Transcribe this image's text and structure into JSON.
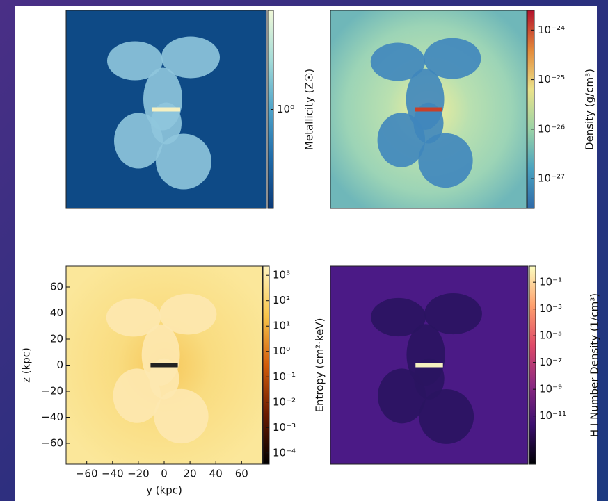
{
  "chart_data": [
    {
      "type": "heatmap",
      "colormap": "YlGnBu",
      "log_scale": true,
      "colorbar_label": "Metallicity (Z☉)",
      "clim": [
        0.1,
        10
      ],
      "cticks": [
        {
          "value": 1,
          "label": "10⁰"
        }
      ]
    },
    {
      "type": "heatmap",
      "colormap": "viridis-red",
      "log_scale": true,
      "colorbar_label": "Density (g/cm³)",
      "clim": [
        2.5e-28,
        2.5e-24
      ],
      "cticks": [
        {
          "value": 1e-24,
          "label": "10⁻²⁴"
        },
        {
          "value": 1e-25,
          "label": "10⁻²⁵"
        },
        {
          "value": 1e-26,
          "label": "10⁻²⁶"
        },
        {
          "value": 1e-27,
          "label": "10⁻²⁷"
        }
      ]
    },
    {
      "type": "heatmap",
      "colormap": "afmhot",
      "log_scale": true,
      "colorbar_label": "Entropy (cm²·keV)",
      "clim": [
        3.6e-05,
        2300
      ],
      "cticks": [
        {
          "value": 1000,
          "label": "10³"
        },
        {
          "value": 100,
          "label": "10²"
        },
        {
          "value": 10,
          "label": "10¹"
        },
        {
          "value": 1,
          "label": "10⁰"
        },
        {
          "value": 0.1,
          "label": "10⁻¹"
        },
        {
          "value": 0.01,
          "label": "10⁻²"
        },
        {
          "value": 0.001,
          "label": "10⁻³"
        },
        {
          "value": 0.0001,
          "label": "10⁻⁴"
        }
      ],
      "xlabel": "y (kpc)",
      "ylabel": "z (kpc)",
      "xlim": [
        -76,
        76
      ],
      "ylim": [
        -76,
        76
      ],
      "xticks": [
        {
          "value": -60,
          "label": "−60"
        },
        {
          "value": -40,
          "label": "−40"
        },
        {
          "value": -20,
          "label": "−20"
        },
        0,
        20,
        40,
        60
      ],
      "yticks": [
        60,
        40,
        20,
        0,
        {
          "value": -20,
          "label": "−20"
        },
        {
          "value": -40,
          "label": "−40"
        },
        {
          "value": -60,
          "label": "−60"
        }
      ]
    },
    {
      "type": "heatmap",
      "colormap": "magma",
      "log_scale": true,
      "colorbar_label": "H I Number Density (1/cm³)",
      "clim": [
        2.5e-15,
        1.6
      ],
      "cticks": [
        {
          "value": 0.1,
          "label": "10⁻¹"
        },
        {
          "value": 0.001,
          "label": "10⁻³"
        },
        {
          "value": 1e-05,
          "label": "10⁻⁵"
        },
        {
          "value": 1e-07,
          "label": "10⁻⁷"
        },
        {
          "value": 1e-09,
          "label": "10⁻⁹"
        },
        {
          "value": 1e-11,
          "label": "10⁻¹¹"
        }
      ]
    }
  ]
}
